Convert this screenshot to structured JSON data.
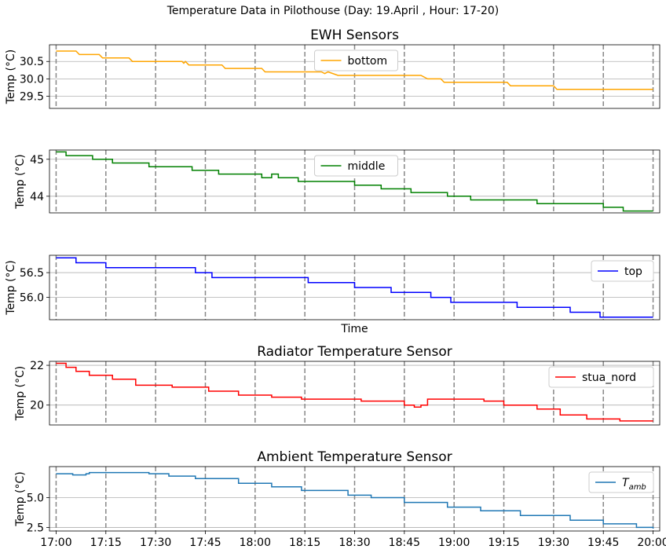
{
  "figure_title": "Temperature Data in Pilothouse (Day: 19.April , Hour: 17-20)",
  "x_ticks": [
    "17:00",
    "17:15",
    "17:30",
    "17:45",
    "18:00",
    "18:15",
    "18:30",
    "18:45",
    "19:00",
    "19:15",
    "19:30",
    "19:45",
    "20:00"
  ],
  "chart_data": [
    {
      "type": "line",
      "title": "EWH Sensors",
      "xlabel": "",
      "ylabel": "Temp (°C)",
      "ylim": [
        29.15,
        30.98
      ],
      "yticks": [
        29.5,
        30.0,
        30.5
      ],
      "ytick_labels": [
        "29.5",
        "30.0",
        "30.5"
      ],
      "grid": true,
      "legend_position": "top-center",
      "series": [
        {
          "name": "bottom",
          "color": "#ffa500",
          "x": [
            0,
            6,
            7,
            13,
            14,
            16,
            17,
            18,
            19,
            22,
            23,
            26,
            27,
            38,
            38.5,
            39,
            40,
            45,
            46,
            50,
            51,
            60,
            62,
            63,
            68,
            69,
            71,
            72,
            77,
            78,
            80,
            81,
            82,
            85,
            86,
            88,
            89,
            100,
            110,
            112,
            113,
            116,
            117,
            118,
            119,
            120,
            121,
            122,
            123,
            125,
            126,
            136,
            137,
            140,
            141,
            143,
            144,
            150,
            151,
            153,
            154,
            155,
            156,
            157,
            158,
            159,
            160,
            161,
            162,
            163,
            164,
            165,
            166,
            167,
            168,
            169,
            170,
            171,
            180
          ],
          "y": [
            30.8,
            30.8,
            30.7,
            30.7,
            30.6,
            30.6,
            30.6,
            30.6,
            30.6,
            30.6,
            30.5,
            30.5,
            30.5,
            30.5,
            30.45,
            30.5,
            30.4,
            30.4,
            30.4,
            30.4,
            30.3,
            30.3,
            30.3,
            30.2,
            30.2,
            30.2,
            30.2,
            30.2,
            30.2,
            30.2,
            30.2,
            30.15,
            30.2,
            30.1,
            30.1,
            30.1,
            30.1,
            30.1,
            30.1,
            30.0,
            30.0,
            30.0,
            29.9,
            29.9,
            29.9,
            29.9,
            29.9,
            29.9,
            29.9,
            29.9,
            29.9,
            29.9,
            29.8,
            29.8,
            29.8,
            29.8,
            29.8,
            29.8,
            29.7,
            29.7,
            29.7,
            29.7,
            29.7,
            29.7,
            29.7,
            29.7,
            29.7,
            29.7,
            29.7,
            29.7,
            29.7,
            29.7,
            29.7,
            29.7,
            29.7,
            29.7,
            29.7,
            29.7,
            29.7
          ]
        }
      ]
    },
    {
      "type": "line",
      "title": "",
      "xlabel": "",
      "ylabel": "Temp (°C)",
      "ylim": [
        43.55,
        45.25
      ],
      "yticks": [
        44,
        45
      ],
      "ytick_labels": [
        "44",
        "45"
      ],
      "grid": true,
      "legend_position": "top-center",
      "series": [
        {
          "name": "middle",
          "color": "#008000",
          "x": [],
          "y": []
        }
      ]
    },
    {
      "type": "line",
      "title": "",
      "xlabel": "Time",
      "ylabel": "Temp (°C)",
      "ylim": [
        55.55,
        56.85
      ],
      "yticks": [
        56.0,
        56.5
      ],
      "ytick_labels": [
        "56.0",
        "56.5"
      ],
      "grid": true,
      "legend_position": "top-right",
      "series": [
        {
          "name": "top",
          "color": "#0000ff",
          "x": [],
          "y": []
        }
      ]
    },
    {
      "type": "line",
      "title": "Radiator Temperature Sensor",
      "xlabel": "",
      "ylabel": "Temp (°C)",
      "ylim": [
        19.0,
        22.2
      ],
      "yticks": [
        20,
        22
      ],
      "ytick_labels": [
        "20",
        "22"
      ],
      "grid": true,
      "legend_position": "top-right",
      "series": [
        {
          "name": "stua_nord",
          "color": "#ff0000",
          "x": [],
          "y": []
        }
      ]
    },
    {
      "type": "line",
      "title": "Ambient Temperature Sensor",
      "xlabel": "",
      "ylabel": "Temp (°C)",
      "ylim": [
        2.2,
        7.6
      ],
      "yticks": [
        2.5,
        5.0
      ],
      "ytick_labels": [
        "2.5",
        "5.0"
      ],
      "grid": true,
      "legend_position": "top-right",
      "series": [
        {
          "name": "T_amb",
          "color": "#1f77b4",
          "x": [],
          "y": []
        }
      ]
    }
  ]
}
